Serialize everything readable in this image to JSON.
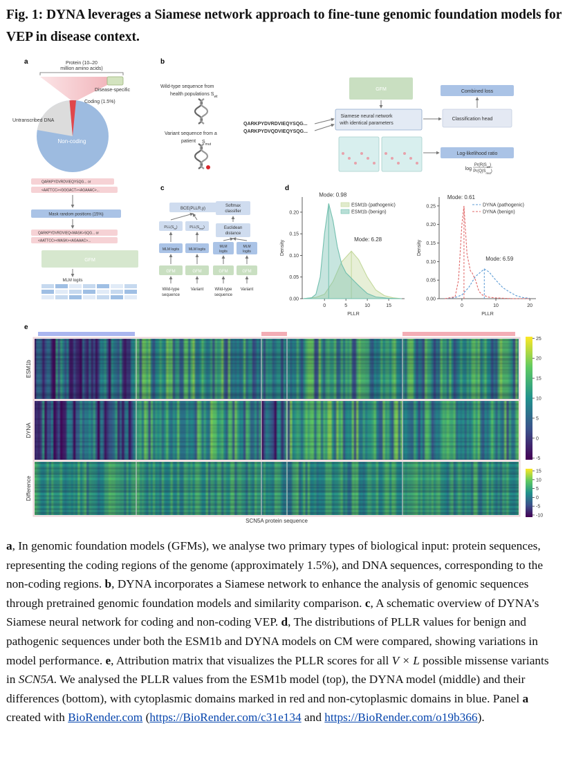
{
  "title": "Fig. 1: DYNA leverages a Siamese network approach to fine-tune genomic foundation models for VEP in disease context.",
  "panel_labels": [
    "a",
    "b",
    "c",
    "d",
    "e"
  ],
  "panel_a": {
    "protein": [
      "Protein (10–20",
      "million amino acids)"
    ],
    "disease_specific": "Disease-specific",
    "coding": "Coding (1.5%)",
    "untranscribed": "Untranscribed DNA",
    "non_coding": "Non-coding"
  },
  "panel_b": {
    "wild_type": [
      "Wild-type sequence from",
      "health populations S",
      "wt"
    ],
    "variant": [
      "Variant sequence from a",
      "patient",
      "S",
      "mut"
    ],
    "seq_wt": "QARKPYDVRDVIEQYSQG...",
    "seq_mut": "QARKPYDVQDVIEQYSQG...",
    "gfm": "GFM",
    "siamese": [
      "Siamese neural network",
      "with identical parameters"
    ],
    "combined_loss": "Combined loss",
    "classification_head": "Classification head",
    "llr": "Log-likelihood ratio",
    "formula": {
      "log": "log",
      "numerator": [
        "Pr(R|S",
        "wt",
        ")"
      ],
      "denominator": [
        "Pr(Q|S",
        "mut",
        ")"
      ]
    }
  },
  "panel_mlm": {
    "seq_protein": "QARKPYDVRDVIEQYSQG... or",
    "seq_dna": "<AATTCC><GGGACT><AGAAAC>...",
    "mask": "Mask random positions (15%)",
    "masked_protein": "QARKPYDVRDVIEQ<MASK>SQG... or",
    "masked_dna": "<AATTCC><MASK><AGAAAC>...",
    "gfm": "GFM",
    "logits": "MLM logits"
  },
  "panel_c": {
    "bce": "BCE(PLLR,y)",
    "pll_wt": [
      "PLL(S",
      "wt",
      ")"
    ],
    "pll_mut": [
      "PLL(S",
      "mut",
      ")"
    ],
    "mlm_logits": "MLM logits",
    "gfm": "GFM",
    "wild_type": [
      "Wild-type",
      "sequence"
    ],
    "variant": "Variant",
    "softmax": [
      "Softmax",
      "classifier"
    ],
    "euclidean": [
      "Euclidean",
      "distance"
    ],
    "mlm": [
      "MLM",
      "logits"
    ]
  },
  "chart_data": [
    {
      "type": "line",
      "xlabel": "PLLR",
      "ylabel": "Density",
      "xlim": [
        -5.2,
        18.7
      ],
      "xticks": [
        0,
        5,
        10,
        15
      ],
      "ylim": [
        0,
        0.235
      ],
      "yticks": [
        {
          "value": 0,
          "label": "0.00"
        },
        {
          "value": 0.05,
          "label": "0.05"
        },
        {
          "value": 0.1,
          "label": "0.10"
        },
        {
          "value": 0.15,
          "label": "0.15"
        },
        {
          "value": 0.2,
          "label": "0.20"
        }
      ],
      "legend": "upper right",
      "series": [
        {
          "name": "ESM1b (pathogenic)",
          "color": "#c3d89b",
          "fill": true,
          "x": [
            -5,
            -2,
            0,
            2,
            4,
            6.28,
            8,
            10,
            12,
            14,
            16,
            18
          ],
          "values": [
            0,
            0.003,
            0.01,
            0.04,
            0.085,
            0.11,
            0.09,
            0.05,
            0.02,
            0.007,
            0.002,
            0
          ]
        },
        {
          "name": "ESM1b (benign)",
          "color": "#72bfae",
          "fill": true,
          "x": [
            -5,
            -3,
            -2,
            -1,
            0,
            0.98,
            2,
            3,
            4,
            5,
            6,
            7,
            8,
            10,
            12,
            15,
            18
          ],
          "values": [
            0,
            0.002,
            0.01,
            0.05,
            0.15,
            0.22,
            0.18,
            0.12,
            0.08,
            0.06,
            0.05,
            0.04,
            0.03,
            0.012,
            0.004,
            0.001,
            0
          ]
        }
      ],
      "annotations": [
        "Mode: 6.28",
        "Mode: 0.98"
      ]
    },
    {
      "type": "line",
      "xlabel": "PLLR",
      "ylabel": "Density",
      "xlim": [
        -6.7,
        21.8
      ],
      "xticks": [
        0,
        10,
        20
      ],
      "ylim": [
        0,
        0.274
      ],
      "yticks": [
        {
          "value": 0,
          "label": "0.00"
        },
        {
          "value": 0.05,
          "label": "0.05"
        },
        {
          "value": 0.1,
          "label": "0.10"
        },
        {
          "value": 0.15,
          "label": "0.15"
        },
        {
          "value": 0.2,
          "label": "0.20"
        },
        {
          "value": 0.25,
          "label": "0.25"
        }
      ],
      "legend": "upper right",
      "series": [
        {
          "name": "DYNA (pathogenic)",
          "color": "#5b9bd5",
          "dashed": true,
          "x": [
            -5,
            -2,
            0,
            2,
            4,
            6.59,
            8,
            10,
            12,
            14,
            16,
            18,
            20
          ],
          "values": [
            0,
            0.003,
            0.01,
            0.03,
            0.06,
            0.08,
            0.072,
            0.05,
            0.03,
            0.018,
            0.008,
            0.003,
            0.001
          ]
        },
        {
          "name": "DYNA (benign)",
          "color": "#e06666",
          "dashed": true,
          "x": [
            -5,
            -2,
            -1,
            0,
            0.61,
            1.5,
            2.5,
            3,
            4,
            5,
            6,
            8,
            10,
            15,
            20
          ],
          "values": [
            0,
            0.005,
            0.05,
            0.2,
            0.25,
            0.12,
            0.075,
            0.07,
            0.05,
            0.02,
            0.01,
            0.004,
            0.002,
            0,
            0
          ]
        }
      ],
      "annotations": [
        "Mode: 6.59",
        "Mode: 0.61"
      ]
    }
  ],
  "panel_e": {
    "rows": [
      "ESM1b",
      "DYNA",
      "Difference"
    ],
    "xlabel": "SCN5A protein sequence",
    "colorbar_lim": [
      -5.4,
      25.4
    ],
    "colorbar_ticks": [
      25,
      20,
      15,
      10,
      5,
      0,
      -5
    ],
    "difference_lim": [
      -11.2,
      16.2
    ],
    "difference_ticks": [
      15,
      10,
      5,
      0,
      -5,
      -10
    ]
  },
  "caption": [
    {
      "text": "a",
      "style": "bold"
    },
    {
      "text": ", In genomic foundation models (GFMs), we analyse two primary types of biological input: protein sequences, representing the coding regions of the genome (approximately 1.5%), and DNA sequences, corresponding to the non-coding regions. "
    },
    {
      "text": "b",
      "style": "bold"
    },
    {
      "text": ", DYNA incorporates a Siamese network to enhance the analysis of genomic sequences through pretrained genomic foundation models and similarity comparison. "
    },
    {
      "text": "c",
      "style": "bold"
    },
    {
      "text": ", A schematic overview of DYNA’s Siamese neural network for coding and non-coding VEP. "
    },
    {
      "text": "d",
      "style": "bold"
    },
    {
      "text": ", The distributions of PLLR values for benign and pathogenic sequences under both the ESM1b and DYNA models on CM were compared, showing variations in model performance. "
    },
    {
      "text": "e",
      "style": "bold"
    },
    {
      "text": ", Attribution matrix that visualizes the PLLR scores for all "
    },
    {
      "text": "V × L",
      "style": "italic"
    },
    {
      "text": " possible missense variants in "
    },
    {
      "text": "SCN5A",
      "style": "italic"
    },
    {
      "text": ". We analysed the PLLR values from the ESM1b model (top), the DYNA model (middle) and their differences (bottom), with cytoplasmic domains marked in red and non-cytoplasmic domains in blue. Panel "
    },
    {
      "text": "a",
      "style": "bold"
    },
    {
      "text": " created with "
    },
    {
      "text": "BioRender.com",
      "style": "link"
    },
    {
      "text": " ("
    },
    {
      "text": "https://BioRender.com/c31e134",
      "style": "link"
    },
    {
      "text": " and "
    },
    {
      "text": "https://BioRender.com/o19b366",
      "style": "link"
    },
    {
      "text": ")."
    }
  ]
}
